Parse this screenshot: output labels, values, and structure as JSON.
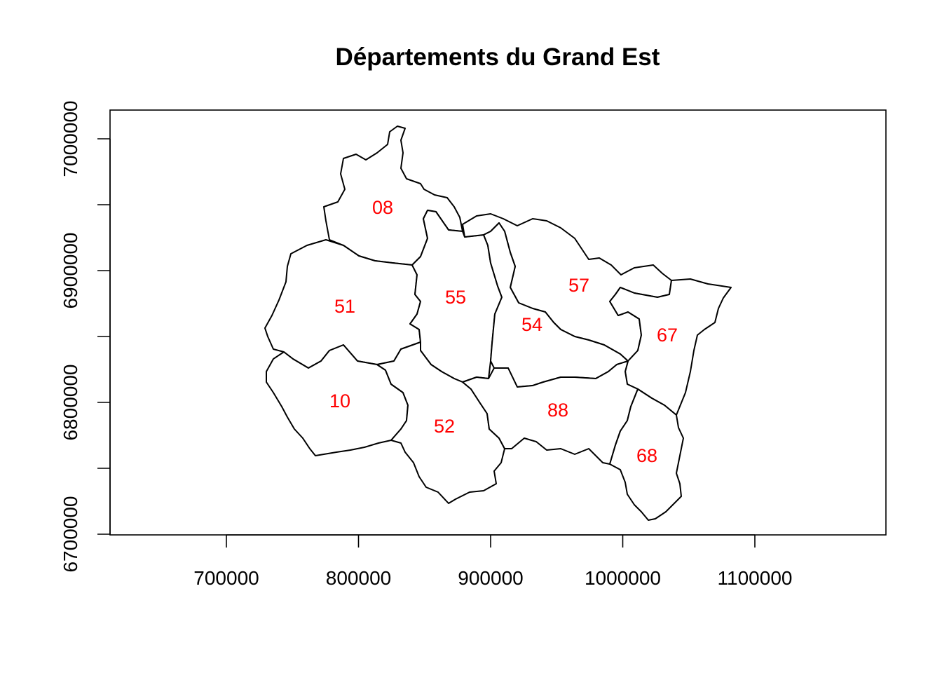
{
  "title": "Départements du Grand Est",
  "label_color": "#ff0000",
  "x_axis": {
    "ticks": [
      700000,
      800000,
      900000,
      1000000,
      1100000
    ],
    "tick_labels": [
      "700000",
      "800000",
      "900000",
      "1000000",
      "1100000"
    ]
  },
  "y_axis": {
    "ticks": [
      6700000,
      6800000,
      6900000,
      7000000
    ],
    "tick_labels": [
      "6700000",
      "6800000",
      "6900000",
      "7000000"
    ]
  },
  "departements": [
    {
      "code": "08"
    },
    {
      "code": "51"
    },
    {
      "code": "55"
    },
    {
      "code": "57"
    },
    {
      "code": "54"
    },
    {
      "code": "67"
    },
    {
      "code": "10"
    },
    {
      "code": "52"
    },
    {
      "code": "88"
    },
    {
      "code": "68"
    }
  ]
}
